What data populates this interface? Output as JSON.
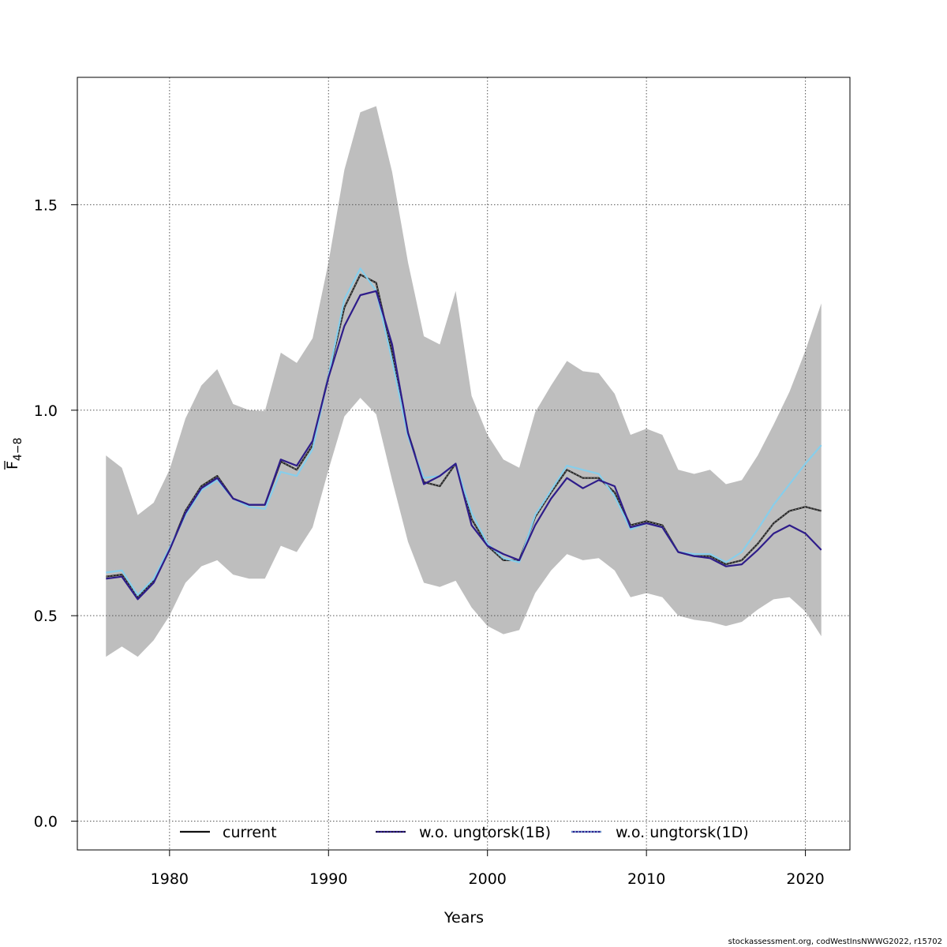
{
  "chart_data": {
    "type": "line",
    "xlabel": "Years",
    "ylabel": "F̄4−8",
    "ylabel_main": "F",
    "ylabel_sub": "4−8",
    "xlim": [
      1974.2,
      2022.8
    ],
    "ylim": [
      -0.07,
      1.81
    ],
    "x_ticks": [
      1980,
      1990,
      2000,
      2010,
      2020
    ],
    "x_tick_labels": [
      "1980",
      "1990",
      "2000",
      "2010",
      "2020"
    ],
    "y_ticks": [
      0.0,
      0.5,
      1.0,
      1.5
    ],
    "y_tick_labels": [
      "0.0",
      "0.5",
      "1.0",
      "1.5"
    ],
    "grid": true,
    "legend_placement": "bottom",
    "x": [
      1976,
      1977,
      1978,
      1979,
      1980,
      1981,
      1982,
      1983,
      1984,
      1985,
      1986,
      1987,
      1988,
      1989,
      1990,
      1991,
      1992,
      1993,
      1994,
      1995,
      1996,
      1997,
      1998,
      1999,
      2000,
      2001,
      2002,
      2003,
      2004,
      2005,
      2006,
      2007,
      2008,
      2009,
      2010,
      2011,
      2012,
      2013,
      2014,
      2015,
      2016,
      2017,
      2018,
      2019,
      2020,
      2021
    ],
    "confidence_band": {
      "color": "#bebebe",
      "upper": [
        0.89,
        0.86,
        0.745,
        0.775,
        0.855,
        0.98,
        1.06,
        1.1,
        1.015,
        1.0,
        0.998,
        1.14,
        1.115,
        1.175,
        1.36,
        1.585,
        1.725,
        1.74,
        1.58,
        1.36,
        1.18,
        1.16,
        1.29,
        1.035,
        0.94,
        0.88,
        0.86,
        0.995,
        1.06,
        1.12,
        1.095,
        1.09,
        1.04,
        0.94,
        0.955,
        0.94,
        0.855,
        0.845,
        0.855,
        0.82,
        0.83,
        0.89,
        0.965,
        1.045,
        1.145,
        1.26
      ],
      "lower": [
        0.4,
        0.425,
        0.4,
        0.44,
        0.5,
        0.58,
        0.62,
        0.635,
        0.6,
        0.59,
        0.59,
        0.67,
        0.655,
        0.715,
        0.855,
        0.985,
        1.03,
        0.99,
        0.83,
        0.68,
        0.58,
        0.57,
        0.585,
        0.52,
        0.475,
        0.455,
        0.465,
        0.555,
        0.61,
        0.65,
        0.635,
        0.64,
        0.61,
        0.545,
        0.555,
        0.545,
        0.5,
        0.49,
        0.485,
        0.475,
        0.485,
        0.515,
        0.54,
        0.545,
        0.51,
        0.45
      ]
    },
    "series": [
      {
        "name": "current",
        "color": "#222222",
        "dash": "solid",
        "values": [
          0.595,
          0.6,
          0.545,
          0.585,
          0.66,
          0.755,
          0.815,
          0.84,
          0.785,
          0.77,
          0.77,
          0.875,
          0.855,
          0.915,
          1.085,
          1.25,
          1.33,
          1.31,
          1.14,
          0.945,
          0.825,
          0.815,
          0.87,
          0.735,
          0.67,
          0.635,
          0.635,
          0.74,
          0.8,
          0.855,
          0.835,
          0.835,
          0.8,
          0.72,
          0.73,
          0.72,
          0.655,
          0.645,
          0.645,
          0.625,
          0.635,
          0.675,
          0.725,
          0.755,
          0.765,
          0.755
        ]
      },
      {
        "name": "w.o. ungtorsk(1B)",
        "color": "#2e1c8a",
        "dash": "solid",
        "values": [
          0.59,
          0.595,
          0.54,
          0.58,
          0.66,
          0.75,
          0.81,
          0.835,
          0.785,
          0.77,
          0.77,
          0.88,
          0.865,
          0.925,
          1.08,
          1.205,
          1.28,
          1.29,
          1.16,
          0.945,
          0.82,
          0.84,
          0.87,
          0.72,
          0.67,
          0.65,
          0.635,
          0.72,
          0.785,
          0.835,
          0.81,
          0.83,
          0.815,
          0.715,
          0.725,
          0.715,
          0.655,
          0.645,
          0.64,
          0.62,
          0.625,
          0.66,
          0.7,
          0.72,
          0.7,
          0.66
        ]
      },
      {
        "name": "w.o. ungtorsk(1D)",
        "color": "#87ceeb",
        "dash": "solid",
        "values": [
          0.605,
          0.61,
          0.55,
          0.59,
          0.665,
          0.745,
          0.805,
          0.83,
          0.785,
          0.765,
          0.76,
          0.85,
          0.84,
          0.905,
          1.085,
          1.27,
          1.345,
          1.29,
          1.12,
          0.935,
          0.835,
          0.84,
          0.87,
          0.75,
          0.675,
          0.64,
          0.63,
          0.745,
          0.805,
          0.865,
          0.855,
          0.845,
          0.79,
          0.71,
          0.725,
          0.715,
          0.655,
          0.65,
          0.65,
          0.63,
          0.655,
          0.71,
          0.77,
          0.82,
          0.87,
          0.915
        ]
      }
    ]
  },
  "legend": {
    "items": [
      {
        "label": "current",
        "color": "#111111",
        "line2": null
      },
      {
        "label": "w.o. ungtorsk(1B)",
        "color": "#2e1c8a",
        "line2": "#111111"
      },
      {
        "label": "w.o. ungtorsk(1D)",
        "color": "#2e1c8a",
        "line2": "#87ceeb"
      }
    ]
  },
  "credit": "stockassessment.org, codWestInsNWWG2022, r15702"
}
